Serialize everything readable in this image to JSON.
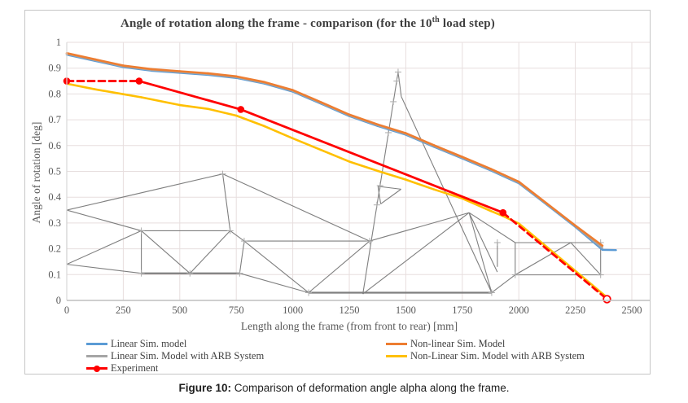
{
  "chart": {
    "title_main": "Angle of rotation along the frame - comparison (for the 10",
    "title_sup": "th",
    "title_tail": " load step)"
  },
  "caption": {
    "label": "Figure 10:",
    "text": " Comparison of deformation angle alpha along the frame."
  },
  "chart_data": {
    "type": "line",
    "title": "Angle of rotation along the frame - comparison (for the 10th load step)",
    "xlabel": "Length along the frame (from front to rear) [mm]",
    "ylabel": "Angle of rotation [deg]",
    "xlim": [
      0,
      2500
    ],
    "ylim": [
      0,
      1
    ],
    "grid": true,
    "legend_position": "bottom",
    "xticks": [
      [
        0,
        "0"
      ],
      [
        250,
        "250"
      ],
      [
        500,
        "500"
      ],
      [
        750,
        "750"
      ],
      [
        1000,
        "1000"
      ],
      [
        1250,
        "1250"
      ],
      [
        1500,
        "1500"
      ],
      [
        1750,
        "1750"
      ],
      [
        2000,
        "2000"
      ],
      [
        2250,
        "2250"
      ],
      [
        2500,
        "2500"
      ]
    ],
    "yticks": [
      [
        0,
        "0"
      ],
      [
        0.1,
        "0.1"
      ],
      [
        0.2,
        "0.2"
      ],
      [
        0.3,
        "0.3"
      ],
      [
        0.4,
        "0.4"
      ],
      [
        0.5,
        "0.5"
      ],
      [
        0.6,
        "0.6"
      ],
      [
        0.7,
        "0.7"
      ],
      [
        0.8,
        "0.8"
      ],
      [
        0.9,
        "0.9"
      ],
      [
        1,
        "1"
      ]
    ],
    "draw_order": [
      0,
      1,
      3,
      4,
      2
    ],
    "series": [
      {
        "name": "Linear Sim. model",
        "color": "#5B9BD5",
        "width": 2.4,
        "points": [
          [
            0,
            0.952
          ],
          [
            125,
            0.928
          ],
          [
            250,
            0.904
          ],
          [
            375,
            0.89
          ],
          [
            500,
            0.882
          ],
          [
            625,
            0.874
          ],
          [
            750,
            0.862
          ],
          [
            875,
            0.84
          ],
          [
            1000,
            0.809
          ],
          [
            1125,
            0.762
          ],
          [
            1250,
            0.714
          ],
          [
            1375,
            0.676
          ],
          [
            1500,
            0.642
          ],
          [
            1625,
            0.595
          ],
          [
            1750,
            0.55
          ],
          [
            1875,
            0.504
          ],
          [
            2000,
            0.454
          ],
          [
            2125,
            0.37
          ],
          [
            2250,
            0.285
          ],
          [
            2370,
            0.196
          ],
          [
            2430,
            0.195
          ]
        ]
      },
      {
        "name": "Linear Sim. Model with ARB System",
        "color": "#A5A5A5",
        "width": 2.4,
        "points": [
          [
            0,
            0.955
          ],
          [
            125,
            0.931
          ],
          [
            250,
            0.907
          ],
          [
            375,
            0.893
          ],
          [
            500,
            0.885
          ],
          [
            625,
            0.877
          ],
          [
            750,
            0.865
          ],
          [
            875,
            0.843
          ],
          [
            1000,
            0.812
          ],
          [
            1125,
            0.765
          ],
          [
            1250,
            0.717
          ],
          [
            1375,
            0.679
          ],
          [
            1500,
            0.645
          ],
          [
            1625,
            0.598
          ],
          [
            1750,
            0.553
          ],
          [
            1875,
            0.507
          ],
          [
            2000,
            0.457
          ],
          [
            2125,
            0.373
          ],
          [
            2250,
            0.288
          ],
          [
            2370,
            0.203
          ]
        ]
      },
      {
        "name": "Experiment",
        "color": "#FF0000",
        "width": 2.8,
        "points": [
          [
            0,
            0.85
          ],
          [
            320,
            0.85
          ],
          [
            770,
            0.74
          ],
          [
            1930,
            0.34
          ],
          [
            2390,
            0.005
          ]
        ],
        "dashed_between": [
          [
            0,
            1
          ],
          [
            3,
            4
          ]
        ],
        "marker_filled_at": [
          0,
          1,
          2,
          3
        ],
        "marker_open_at": [
          4
        ]
      },
      {
        "name": "Non-linear Sim. Model",
        "color": "#ED7D31",
        "width": 2.6,
        "points": [
          [
            0,
            0.958
          ],
          [
            125,
            0.934
          ],
          [
            250,
            0.91
          ],
          [
            375,
            0.896
          ],
          [
            500,
            0.888
          ],
          [
            625,
            0.88
          ],
          [
            750,
            0.868
          ],
          [
            875,
            0.846
          ],
          [
            1000,
            0.815
          ],
          [
            1125,
            0.768
          ],
          [
            1250,
            0.72
          ],
          [
            1375,
            0.682
          ],
          [
            1500,
            0.648
          ],
          [
            1625,
            0.601
          ],
          [
            1750,
            0.556
          ],
          [
            1875,
            0.51
          ],
          [
            2000,
            0.46
          ],
          [
            2125,
            0.375
          ],
          [
            2250,
            0.29
          ],
          [
            2370,
            0.212
          ]
        ]
      },
      {
        "name": "Non-Linear Sim. Model with ARB System",
        "color": "#FFC000",
        "width": 2.6,
        "points": [
          [
            0,
            0.84
          ],
          [
            125,
            0.818
          ],
          [
            250,
            0.799
          ],
          [
            330,
            0.787
          ],
          [
            500,
            0.757
          ],
          [
            625,
            0.742
          ],
          [
            750,
            0.716
          ],
          [
            875,
            0.675
          ],
          [
            1000,
            0.628
          ],
          [
            1125,
            0.583
          ],
          [
            1250,
            0.538
          ],
          [
            1375,
            0.502
          ],
          [
            1500,
            0.468
          ],
          [
            1625,
            0.43
          ],
          [
            1750,
            0.395
          ],
          [
            1875,
            0.347
          ],
          [
            1930,
            0.327
          ],
          [
            2000,
            0.298
          ],
          [
            2390,
            0.012
          ]
        ]
      }
    ],
    "frame_sketch": {
      "description": "gray wireframe side-view sketch of the vehicle space frame drawn in the plot background",
      "color": "#7f7f7f",
      "segments": [
        [
          0,
          0.35,
          330,
          0.27
        ],
        [
          0,
          0.14,
          330,
          0.27
        ],
        [
          0,
          0.35,
          0,
          0.14
        ],
        [
          0,
          0.35,
          690,
          0.49
        ],
        [
          0,
          0.14,
          330,
          0.105
        ],
        [
          330,
          0.27,
          330,
          0.105
        ],
        [
          330,
          0.105,
          765,
          0.105,
          2.2
        ],
        [
          330,
          0.27,
          545,
          0.105
        ],
        [
          545,
          0.105,
          723,
          0.27
        ],
        [
          330,
          0.27,
          723,
          0.27
        ],
        [
          690,
          0.49,
          723,
          0.27
        ],
        [
          690,
          0.49,
          1340,
          0.23
        ],
        [
          723,
          0.27,
          785,
          0.23
        ],
        [
          785,
          0.23,
          765,
          0.105
        ],
        [
          785,
          0.23,
          1340,
          0.23
        ],
        [
          765,
          0.105,
          1070,
          0.03
        ],
        [
          785,
          0.23,
          1070,
          0.03
        ],
        [
          1070,
          0.03,
          1340,
          0.23
        ],
        [
          1070,
          0.03,
          1880,
          0.03,
          2.2
        ],
        [
          1310,
          0.025,
          1466,
          0.885
        ],
        [
          1466,
          0.885,
          1480,
          0.79
        ],
        [
          1480,
          0.79,
          1880,
          0.03
        ],
        [
          1340,
          0.23,
          1780,
          0.34
        ],
        [
          1780,
          0.34,
          1880,
          0.03
        ],
        [
          1780,
          0.34,
          1310,
          0.025
        ],
        [
          1780,
          0.34,
          1984,
          0.224
        ],
        [
          1780,
          0.34,
          1905,
          0.11
        ],
        [
          1905,
          0.225,
          1905,
          0.13
        ],
        [
          1984,
          0.224,
          2362,
          0.224
        ],
        [
          2362,
          0.224,
          2362,
          0.099
        ],
        [
          1984,
          0.099,
          2362,
          0.099
        ],
        [
          1984,
          0.224,
          1984,
          0.099
        ],
        [
          1984,
          0.099,
          2230,
          0.224
        ],
        [
          2230,
          0.224,
          2362,
          0.099
        ],
        [
          1880,
          0.03,
          1984,
          0.099
        ],
        [
          1377,
          0.442,
          1479,
          0.431
        ],
        [
          1377,
          0.442,
          1389,
          0.374
        ],
        [
          1389,
          0.374,
          1479,
          0.431
        ]
      ],
      "node_marks": [
        [
          330,
          0.27
        ],
        [
          330,
          0.105
        ],
        [
          545,
          0.105
        ],
        [
          765,
          0.105
        ],
        [
          785,
          0.23
        ],
        [
          723,
          0.27
        ],
        [
          1070,
          0.03
        ],
        [
          1340,
          0.23
        ],
        [
          1880,
          0.03
        ],
        [
          1905,
          0.224
        ],
        [
          1984,
          0.099
        ],
        [
          2362,
          0.224
        ],
        [
          2362,
          0.099
        ],
        [
          1372,
          0.37
        ],
        [
          1386,
          0.445
        ],
        [
          1423,
          0.65
        ],
        [
          1445,
          0.77
        ],
        [
          1460,
          0.85
        ],
        [
          1466,
          0.885
        ],
        [
          690,
          0.49
        ]
      ]
    },
    "colors": {
      "gridline": "#e7dede",
      "axis": "#bfbfbf",
      "tick_label": "#595959",
      "node_mark": "#ababab"
    }
  }
}
